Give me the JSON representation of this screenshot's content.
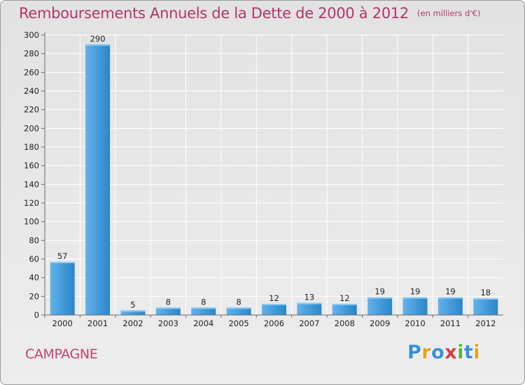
{
  "header": {
    "title": "Remboursements Annuels de la Dette de 2000 à 2012",
    "unit_note": "(en milliers d'€)"
  },
  "footer": {
    "commune": "CAMPAGNE",
    "brand_text": "Proxiti",
    "brand_letters": [
      {
        "char": "P",
        "color": "#3a8fd8"
      },
      {
        "char": "r",
        "color": "#e8a020"
      },
      {
        "char": "o",
        "color": "#3a8fd8"
      },
      {
        "char": "x",
        "color": "#d83a3a"
      },
      {
        "char": "i",
        "color": "#5ab040"
      },
      {
        "char": "t",
        "color": "#3a8fd8"
      },
      {
        "char": "i",
        "color": "#e8a020"
      }
    ]
  },
  "colors": {
    "title": "#b5336e",
    "commune": "#c5426d",
    "bar_light": "#62b2ec",
    "bar_dark": "#2a86c8",
    "grid": "#ffffff",
    "axis": "#6a6a6a",
    "tick_text": "#222222"
  },
  "chart_data": {
    "type": "bar",
    "title": "Remboursements Annuels de la Dette de 2000 à 2012",
    "subtitle": "(en milliers d'€)",
    "xlabel": "",
    "ylabel": "",
    "categories": [
      "2000",
      "2001",
      "2002",
      "2003",
      "2004",
      "2005",
      "2006",
      "2007",
      "2008",
      "2009",
      "2010",
      "2011",
      "2012"
    ],
    "values": [
      57,
      290,
      5,
      8,
      8,
      8,
      12,
      13,
      12,
      19,
      19,
      19,
      18
    ],
    "ylim": [
      0,
      300
    ],
    "yticks": [
      0,
      20,
      40,
      60,
      80,
      100,
      120,
      140,
      160,
      180,
      200,
      220,
      240,
      260,
      280,
      300
    ],
    "grid": true,
    "legend": "none"
  }
}
